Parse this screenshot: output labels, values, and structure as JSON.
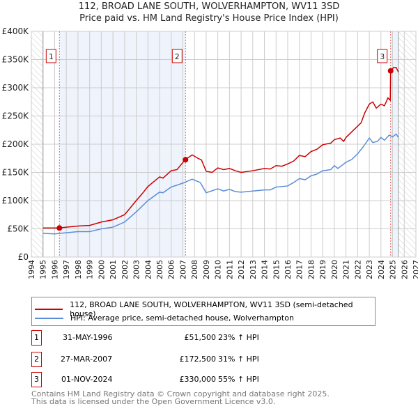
{
  "chart_data": {
    "type": "line",
    "title": "112, BROAD LANE SOUTH, WOLVERHAMPTON, WV11 3SD",
    "subtitle": "Price paid vs. HM Land Registry's House Price Index (HPI)",
    "xlim": [
      1994,
      2027
    ],
    "ylim": [
      0,
      400000
    ],
    "x_ticks": [
      "1994",
      "1995",
      "1996",
      "1997",
      "1998",
      "1999",
      "2000",
      "2001",
      "2002",
      "2003",
      "2004",
      "2005",
      "2006",
      "2007",
      "2008",
      "2009",
      "2010",
      "2011",
      "2012",
      "2013",
      "2014",
      "2015",
      "2016",
      "2017",
      "2018",
      "2019",
      "2020",
      "2021",
      "2022",
      "2023",
      "2024",
      "2025",
      "2026",
      "2027"
    ],
    "y_ticks": [
      {
        "v": 0,
        "label": "£0"
      },
      {
        "v": 50000,
        "label": "£50K"
      },
      {
        "v": 100000,
        "label": "£100K"
      },
      {
        "v": 150000,
        "label": "£150K"
      },
      {
        "v": 200000,
        "label": "£200K"
      },
      {
        "v": 250000,
        "label": "£250K"
      },
      {
        "v": 300000,
        "label": "£300K"
      },
      {
        "v": 350000,
        "label": "£350K"
      },
      {
        "v": 400000,
        "label": "£400K"
      }
    ],
    "grid": true,
    "data_range": [
      1995,
      2025.5
    ],
    "series": [
      {
        "name": "112, BROAD LANE SOUTH, WOLVERHAMPTON, WV11 3SD (semi-detached house)",
        "color": "#cc0000",
        "x": [
          1995,
          1996.4,
          1997,
          1998,
          1999,
          2000,
          2001,
          2002,
          2003,
          2003.5,
          2004,
          2005,
          2005.3,
          2006,
          2006.5,
          2007.2,
          2007.8,
          2008.3,
          2008.6,
          2009,
          2009.5,
          2010,
          2010.5,
          2011,
          2011.5,
          2012,
          2013,
          2014,
          2014.5,
          2015,
          2015.5,
          2016,
          2016.5,
          2017,
          2017.5,
          2018,
          2018.5,
          2019,
          2019.7,
          2020,
          2020.5,
          2020.8,
          2021,
          2021.5,
          2022,
          2022.3,
          2022.6,
          2023,
          2023.3,
          2023.6,
          2024,
          2024.3,
          2024.6,
          2024.8,
          2024.83,
          2025.1,
          2025.3,
          2025.5
        ],
        "y": [
          51500,
          51500,
          53000,
          55000,
          56000,
          62000,
          66000,
          75000,
          100000,
          112000,
          125000,
          142000,
          140000,
          153000,
          155000,
          172500,
          181000,
          175000,
          172000,
          152000,
          150000,
          158000,
          155000,
          157000,
          153000,
          150000,
          153000,
          157000,
          156000,
          162000,
          161000,
          165000,
          170000,
          180000,
          178000,
          187000,
          191000,
          199000,
          202000,
          208000,
          211000,
          205000,
          212000,
          222000,
          232000,
          238000,
          255000,
          271000,
          275000,
          264000,
          271000,
          268000,
          282000,
          278000,
          330000,
          336000,
          336000,
          328000
        ]
      },
      {
        "name": "HPI: Average price, semi-detached house, Wolverhampton",
        "color": "#5b8dd6",
        "x": [
          1995,
          1996,
          1997,
          1998,
          1999,
          2000,
          2001,
          2002,
          2003,
          2004,
          2005,
          2005.3,
          2006,
          2007,
          2007.8,
          2008.5,
          2009,
          2010,
          2010.5,
          2011,
          2011.5,
          2012,
          2013,
          2014,
          2014.5,
          2015,
          2016,
          2016.5,
          2017,
          2017.5,
          2018,
          2018.5,
          2019,
          2019.7,
          2020,
          2020.3,
          2021,
          2021.5,
          2022,
          2022.5,
          2023,
          2023.3,
          2023.7,
          2024,
          2024.3,
          2024.7,
          2025,
          2025.3,
          2025.5
        ],
        "y": [
          42000,
          41000,
          43000,
          45000,
          45000,
          50000,
          53000,
          62000,
          80000,
          100000,
          115000,
          114000,
          124000,
          131000,
          138000,
          132000,
          114000,
          121000,
          117000,
          120000,
          116000,
          115000,
          117000,
          119000,
          119000,
          124000,
          126000,
          132000,
          139000,
          137000,
          144000,
          147000,
          153000,
          155000,
          162000,
          157000,
          168000,
          173000,
          183000,
          196000,
          211000,
          203000,
          205000,
          212000,
          207000,
          216000,
          213000,
          218000,
          212000
        ]
      }
    ],
    "sales": [
      {
        "label": "1",
        "x": 1996.41,
        "price": 51500,
        "date": "31-MAY-1996",
        "price_text": "£51,500",
        "hpi": "23% ↑ HPI"
      },
      {
        "label": "2",
        "x": 2007.23,
        "price": 172500,
        "date": "27-MAR-2007",
        "price_text": "£172,500",
        "hpi": "31% ↑ HPI"
      },
      {
        "label": "3",
        "x": 2024.83,
        "price": 330000,
        "date": "01-NOV-2024",
        "price_text": "£330,000",
        "hpi": "55% ↑ HPI"
      }
    ],
    "legend": [
      "112, BROAD LANE SOUTH, WOLVERHAMPTON, WV11 3SD (semi-detached house)",
      "HPI: Average price, semi-detached house, Wolverhampton"
    ],
    "legend_position": "below"
  },
  "footer": [
    "Contains HM Land Registry data © Crown copyright and database right 2025.",
    "This data is licensed under the Open Government Licence v3.0."
  ]
}
